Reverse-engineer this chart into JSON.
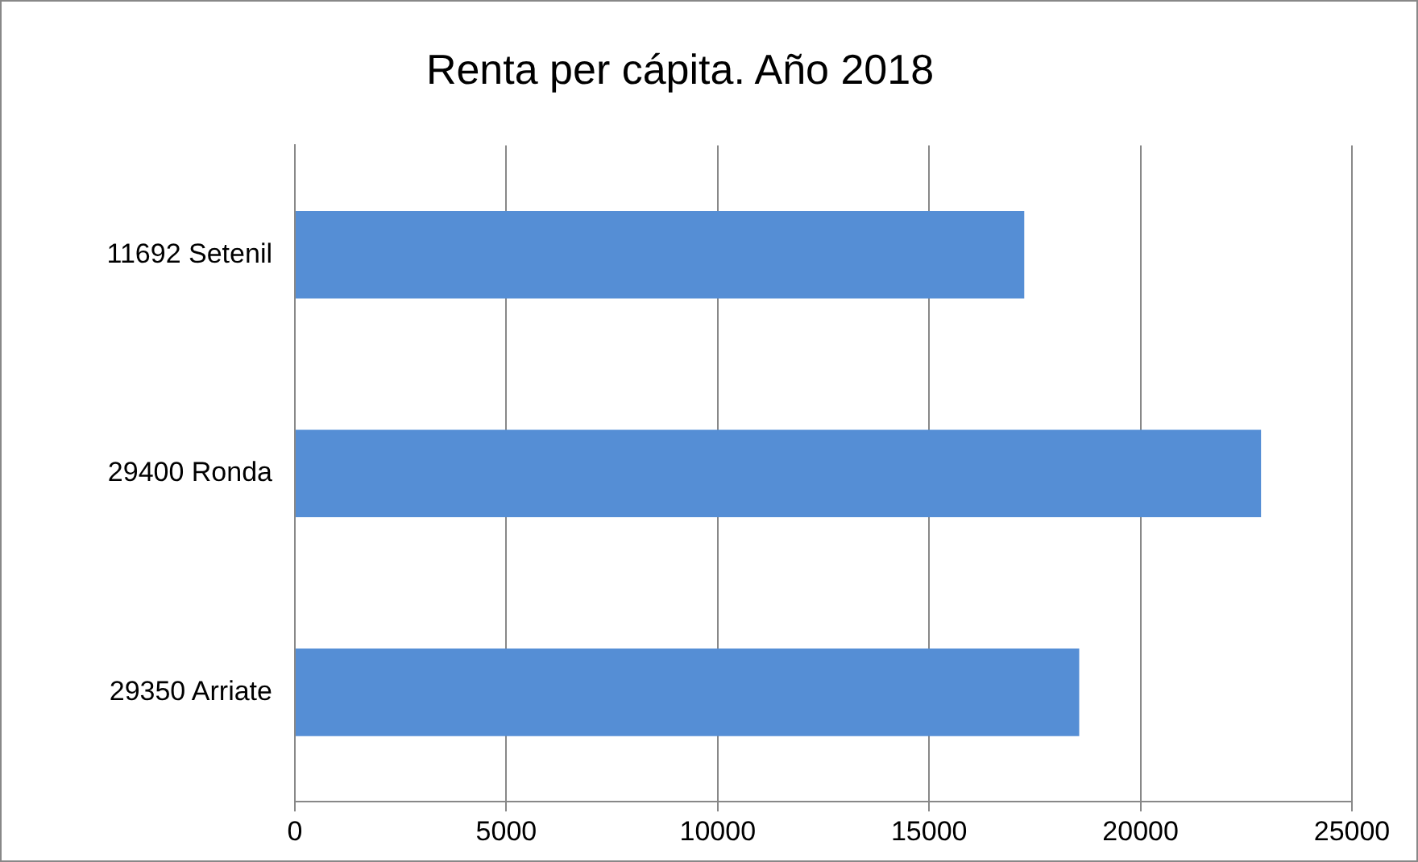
{
  "chart_data": {
    "type": "bar",
    "orientation": "horizontal",
    "title": "Renta per cápita. Año 2018",
    "categories": [
      "11692 Setenil",
      "29400 Ronda",
      "29350 Arriate"
    ],
    "values": [
      17250,
      22850,
      18550
    ],
    "color": "#558ed5",
    "xlim": [
      0,
      25000
    ],
    "xticks": [
      0,
      5000,
      10000,
      15000,
      20000,
      25000
    ],
    "grid": "x",
    "legend": false
  }
}
